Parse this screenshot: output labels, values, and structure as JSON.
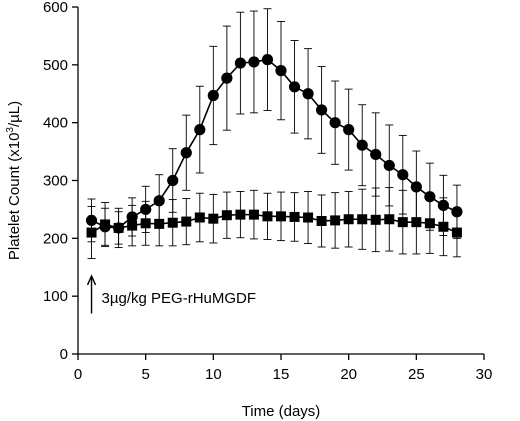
{
  "chart_data": {
    "type": "line",
    "xlabel": "Time (days)",
    "ylabel": {
      "prefix": "Platelet Count (x10",
      "superscript": "3",
      "suffix": "/µL)"
    },
    "xlim": [
      0,
      30
    ],
    "ylim": [
      0,
      600
    ],
    "xticks": [
      0,
      5,
      10,
      15,
      20,
      25,
      30
    ],
    "yticks": [
      0,
      100,
      200,
      300,
      400,
      500,
      600
    ],
    "grid": false,
    "legend": "none",
    "x": [
      1,
      2,
      3,
      4,
      5,
      6,
      7,
      8,
      9,
      10,
      11,
      12,
      13,
      14,
      15,
      16,
      17,
      18,
      19,
      20,
      21,
      22,
      23,
      24,
      25,
      26,
      27,
      28
    ],
    "series": [
      {
        "marker": "circle",
        "color": "#000000",
        "values": [
          231,
          220,
          218,
          237,
          250,
          265,
          300,
          348,
          388,
          447,
          477,
          503,
          505,
          509,
          490,
          462,
          450,
          422,
          400,
          388,
          361,
          345,
          326,
          310,
          289,
          272,
          257,
          246
        ],
        "error": [
          37,
          32,
          28,
          33,
          40,
          45,
          55,
          65,
          75,
          85,
          90,
          88,
          88,
          88,
          85,
          80,
          78,
          75,
          72,
          70,
          70,
          72,
          70,
          68,
          62,
          58,
          52,
          46
        ]
      },
      {
        "marker": "square",
        "color": "#000000",
        "values": [
          210,
          224,
          218,
          222,
          226,
          225,
          227,
          229,
          236,
          234,
          240,
          241,
          241,
          238,
          238,
          237,
          236,
          230,
          231,
          233,
          233,
          232,
          233,
          228,
          228,
          226,
          220,
          210
        ],
        "error": [
          45,
          38,
          34,
          35,
          38,
          38,
          40,
          40,
          42,
          42,
          40,
          40,
          42,
          40,
          42,
          42,
          45,
          45,
          48,
          48,
          52,
          55,
          55,
          55,
          55,
          52,
          50,
          42
        ]
      }
    ],
    "annotation": {
      "text": "3µg/kg PEG-rHuMGDF",
      "arrow_x": 1,
      "arrow_from_y": 70,
      "arrow_to_y": 135,
      "text_y": 97
    }
  }
}
